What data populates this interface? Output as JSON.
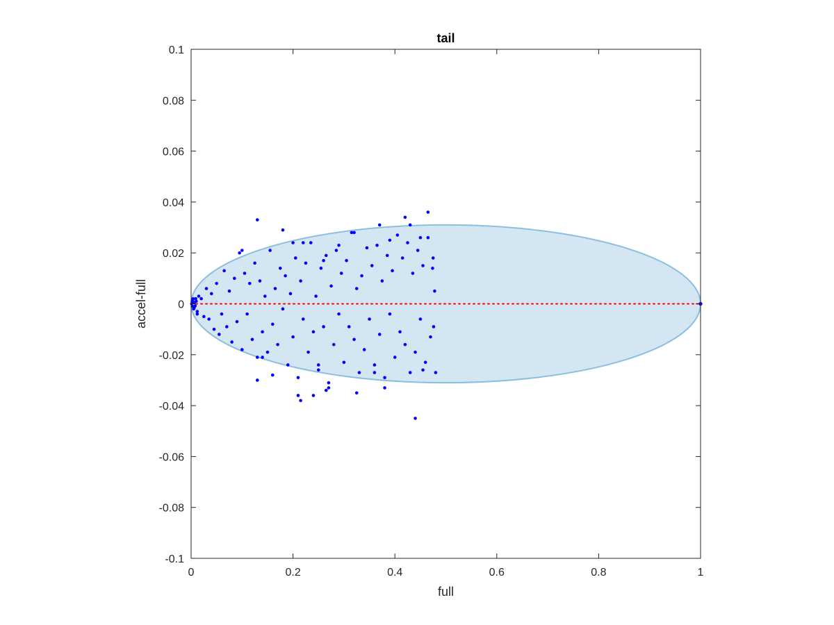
{
  "chart_data": {
    "type": "scatter",
    "title": "tail",
    "xlabel": "full",
    "ylabel": "accel-full",
    "xlim": [
      0,
      1
    ],
    "ylim": [
      -0.1,
      0.1
    ],
    "xticks": [
      0,
      0.2,
      0.4,
      0.6,
      0.8,
      1
    ],
    "xtick_labels": [
      "0",
      "0.2",
      "0.4",
      "0.6",
      "0.8",
      "1"
    ],
    "yticks": [
      -0.1,
      -0.08,
      -0.06,
      -0.04,
      -0.02,
      0,
      0.02,
      0.04,
      0.06,
      0.08,
      0.1
    ],
    "ytick_labels": [
      "-0.1",
      "-0.08",
      "-0.06",
      "-0.04",
      "-0.02",
      "0",
      "0.02",
      "0.04",
      "0.06",
      "0.08",
      "0.1"
    ],
    "grid": false,
    "colors": {
      "points": "#0000ff",
      "reference_line": "#ff0000",
      "ellipse_fill": "#d4e6f2",
      "ellipse_edge": "#8bbfe0",
      "axes": "#262626"
    },
    "ellipse": {
      "center": [
        0.5,
        0
      ],
      "semi_axis_x": 0.5,
      "semi_axis_y": 0.031
    },
    "reference_line": {
      "y": 0,
      "x_range": [
        0,
        1
      ],
      "style": "dotted"
    },
    "points": {
      "x": [
        0.001,
        0.002,
        0.003,
        0.004,
        0.005,
        0.006,
        0.008,
        0.01,
        0.012,
        0.015,
        0.003,
        0.006,
        0.009,
        0.012,
        0.02,
        0.025,
        0.03,
        0.035,
        0.04,
        0.045,
        0.05,
        0.055,
        0.06,
        0.065,
        0.07,
        0.075,
        0.08,
        0.085,
        0.09,
        0.095,
        0.1,
        0.105,
        0.11,
        0.115,
        0.12,
        0.125,
        0.13,
        0.135,
        0.14,
        0.145,
        0.15,
        0.155,
        0.16,
        0.165,
        0.17,
        0.175,
        0.18,
        0.185,
        0.19,
        0.195,
        0.2,
        0.205,
        0.21,
        0.215,
        0.22,
        0.225,
        0.23,
        0.235,
        0.24,
        0.245,
        0.25,
        0.255,
        0.26,
        0.265,
        0.27,
        0.275,
        0.28,
        0.285,
        0.29,
        0.295,
        0.3,
        0.305,
        0.31,
        0.315,
        0.32,
        0.325,
        0.33,
        0.335,
        0.34,
        0.345,
        0.35,
        0.355,
        0.36,
        0.365,
        0.37,
        0.375,
        0.38,
        0.385,
        0.39,
        0.395,
        0.4,
        0.405,
        0.41,
        0.415,
        0.42,
        0.425,
        0.43,
        0.435,
        0.44,
        0.445,
        0.45,
        0.455,
        0.46,
        0.465,
        0.47,
        0.475,
        0.48,
        0.478,
        0.476,
        0.474,
        0.1,
        0.13,
        0.18,
        0.2,
        0.22,
        0.26,
        0.29,
        0.32,
        0.37,
        0.39,
        0.42,
        0.43,
        0.45,
        0.465,
        0.21,
        0.16,
        0.13,
        0.24,
        0.265,
        0.325,
        0.38,
        0.44,
        0.455,
        0.36,
        0.25,
        0.27,
        0.215,
        0.14
      ],
      "y": [
        0.0,
        0.001,
        -0.001,
        0.002,
        -0.002,
        0.0005,
        -0.0008,
        0.001,
        -0.003,
        0.003,
        0.0015,
        -0.0015,
        0.002,
        -0.004,
        0.002,
        -0.005,
        0.006,
        -0.006,
        0.004,
        -0.01,
        0.008,
        -0.012,
        -0.004,
        0.013,
        -0.009,
        0.005,
        -0.015,
        0.01,
        -0.007,
        0.02,
        -0.018,
        0.012,
        -0.004,
        0.008,
        -0.014,
        0.016,
        -0.021,
        0.009,
        -0.011,
        0.003,
        -0.019,
        0.021,
        -0.008,
        0.006,
        -0.016,
        0.014,
        -0.002,
        0.011,
        -0.024,
        0.004,
        -0.013,
        0.018,
        -0.029,
        0.009,
        -0.006,
        0.016,
        -0.019,
        0.024,
        -0.011,
        0.003,
        -0.026,
        0.014,
        -0.009,
        0.019,
        -0.031,
        0.007,
        -0.016,
        0.021,
        -0.004,
        0.012,
        -0.023,
        0.017,
        -0.009,
        0.028,
        -0.014,
        0.006,
        -0.027,
        0.011,
        -0.018,
        0.022,
        -0.006,
        0.015,
        -0.024,
        0.023,
        -0.012,
        0.009,
        -0.029,
        0.019,
        -0.004,
        0.013,
        -0.021,
        0.027,
        -0.011,
        0.018,
        -0.016,
        0.024,
        -0.027,
        0.012,
        -0.019,
        0.021,
        -0.006,
        0.015,
        -0.023,
        0.026,
        -0.013,
        0.018,
        -0.027,
        0.005,
        -0.009,
        0.014,
        0.021,
        0.033,
        0.029,
        0.024,
        0.024,
        0.017,
        0.023,
        0.028,
        0.031,
        0.025,
        0.034,
        0.031,
        0.026,
        0.036,
        -0.036,
        -0.028,
        -0.03,
        -0.036,
        -0.034,
        -0.035,
        -0.033,
        -0.045,
        -0.026,
        -0.027,
        -0.024,
        -0.033,
        -0.038,
        -0.021
      ]
    }
  }
}
